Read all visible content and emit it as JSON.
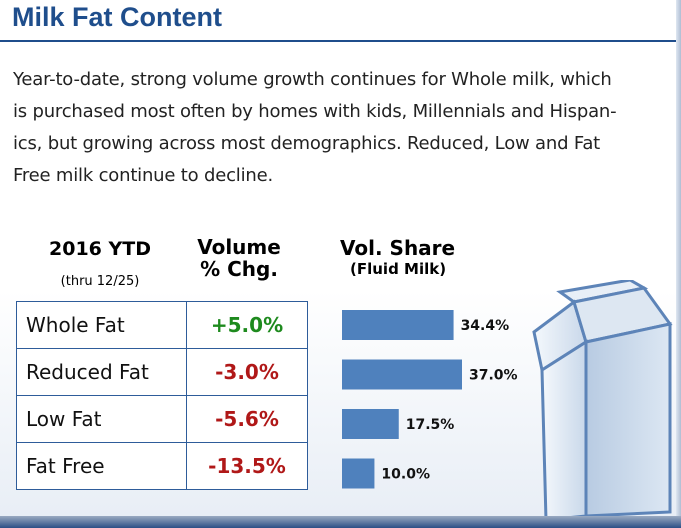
{
  "title": "Milk Fat Content",
  "description": [
    "Year-to-date, strong volume growth continues for Whole milk, which",
    "is purchased most often by homes with kids, Millennials and Hispan-",
    "ics, but growing across most demographics. Reduced, Low and Fat",
    "Free milk continue to decline."
  ],
  "table": {
    "header_period": "2016 YTD",
    "header_period_sub": "(thru 12/25)",
    "header_volume": [
      "Volume",
      "% Chg."
    ],
    "header_share": "Vol. Share",
    "header_share_sub": "(Fluid Milk)",
    "rows": [
      {
        "segment": "Whole Fat",
        "chg": "+5.0%",
        "sign": "pos"
      },
      {
        "segment": "Reduced Fat",
        "chg": "-3.0%",
        "sign": "neg"
      },
      {
        "segment": "Low Fat",
        "chg": "-5.6%",
        "sign": "neg"
      },
      {
        "segment": "Fat Free",
        "chg": "-13.5%",
        "sign": "neg"
      }
    ]
  },
  "colors": {
    "title": "#1f4e8c",
    "bar": "#4f81bd",
    "positive": "#1e8a1e",
    "negative": "#b01818"
  },
  "icons": [
    "milk-carton-icon"
  ],
  "chart_data": {
    "type": "bar",
    "orientation": "horizontal",
    "title": "Vol. Share",
    "subtitle": "(Fluid Milk)",
    "categories": [
      "Whole Fat",
      "Reduced Fat",
      "Low Fat",
      "Fat Free"
    ],
    "values": [
      34.4,
      37.0,
      17.5,
      10.0
    ],
    "value_labels": [
      "34.4%",
      "37.0%",
      "17.5%",
      "10.0%"
    ],
    "xlim": [
      0,
      37.0
    ],
    "grid": false,
    "legend": "none"
  }
}
